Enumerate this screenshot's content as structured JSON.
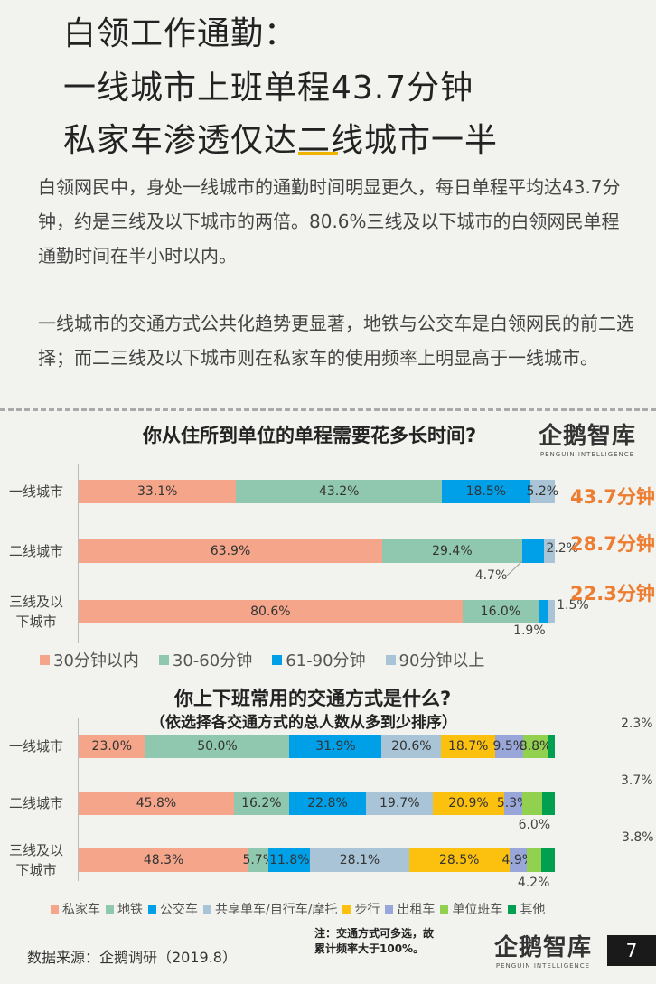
{
  "header": {
    "title_lines": [
      "白领工作通勤：",
      "一线城市上班单程43.7分钟",
      "私家车渗透仅达二线城市一半"
    ]
  },
  "body_text": {
    "para1": "白领网民中，身处一线城市的通勤时间明显更久，每日单程平均达43.7分钟，约是三线及以下城市的两倍。80.6%三线及以下城市的白领网民单程通勤时间在半小时以内。",
    "para2": "一线城市的交通方式公共化趋势更显著，地铁与公交车是白领网民的前二选择；而二三线及以下城市则在私家车的使用频率上明显高于一线城市。"
  },
  "logo": {
    "name": "企鹅智库",
    "sub": "PENGUIN INTELLIGENCE"
  },
  "chart_data": [
    {
      "type": "bar",
      "orientation": "horizontal",
      "stacked": true,
      "title": "你从住所到单位的单程需要花多长时间?",
      "categories": [
        "一线城市",
        "二线城市",
        "三线及以下城市"
      ],
      "category_labels": [
        [
          "一线城市"
        ],
        [
          "二线城市"
        ],
        [
          "三线及以",
          "下城市"
        ]
      ],
      "series": [
        {
          "name": "30分钟以内",
          "color": "#f4a58a",
          "values": [
            33.1,
            63.9,
            80.6
          ],
          "labels": [
            "33.1%",
            "63.9%",
            "80.6%"
          ]
        },
        {
          "name": "30-60分钟",
          "color": "#8fc8ae",
          "values": [
            43.2,
            29.4,
            16.0
          ],
          "labels": [
            "43.2%",
            "29.4%",
            "16.0%"
          ]
        },
        {
          "name": "61-90分钟",
          "color": "#00a0e9",
          "values": [
            18.5,
            4.7,
            1.9
          ],
          "labels": [
            "18.5%",
            "4.7%",
            "1.9%"
          ]
        },
        {
          "name": "90分钟以上",
          "color": "#a9c4d6",
          "values": [
            5.2,
            2.2,
            1.5
          ],
          "labels": [
            "5.2%",
            "2.2%",
            "1.5%"
          ]
        }
      ],
      "averages": [
        "43.7分钟",
        "28.7分钟",
        "22.3分钟"
      ],
      "legend": "bottom"
    },
    {
      "type": "bar",
      "orientation": "horizontal",
      "stacked": true,
      "title": "你上下班常用的交通方式是什么?",
      "subtitle": "（依选择各交通方式的总人数从多到少排序）",
      "categories": [
        "一线城市",
        "二线城市",
        "三线及以下城市"
      ],
      "category_labels": [
        [
          "一线城市"
        ],
        [
          "二线城市"
        ],
        [
          "三线及以",
          "下城市"
        ]
      ],
      "series": [
        {
          "name": "私家车",
          "color": "#f4a58a",
          "values": [
            23.0,
            45.8,
            48.3
          ],
          "labels": [
            "23.0%",
            "45.8%",
            "48.3%"
          ]
        },
        {
          "name": "地铁",
          "color": "#8fc8ae",
          "values": [
            50.0,
            16.2,
            5.7
          ],
          "labels": [
            "50.0%",
            "16.2%",
            "5.7%"
          ]
        },
        {
          "name": "公交车",
          "color": "#00a0e9",
          "values": [
            31.9,
            22.8,
            11.8
          ],
          "labels": [
            "31.9%",
            "22.8%",
            "11.8%"
          ]
        },
        {
          "name": "共享单车/自行车/摩托",
          "color": "#a9c4d6",
          "values": [
            20.6,
            19.7,
            28.1
          ],
          "labels": [
            "20.6%",
            "19.7%",
            "28.1%"
          ]
        },
        {
          "name": "步行",
          "color": "#fcc10f",
          "values": [
            18.7,
            20.9,
            28.5
          ],
          "labels": [
            "18.7%",
            "20.9%",
            "28.5%"
          ]
        },
        {
          "name": "出租车",
          "color": "#98a6d9",
          "values": [
            9.5,
            5.3,
            4.9
          ],
          "labels": [
            "9.5%",
            "5.3%",
            "4.9%"
          ]
        },
        {
          "name": "单位班车",
          "color": "#92d050",
          "values": [
            8.8,
            6.0,
            4.2
          ],
          "labels": [
            "8.8%",
            "6.0%",
            "4.2%"
          ]
        },
        {
          "name": "其他",
          "color": "#00a050",
          "values": [
            2.3,
            3.7,
            3.8
          ],
          "labels": [
            "2.3%",
            "3.7%",
            "3.8%"
          ]
        }
      ],
      "legend": "bottom"
    }
  ],
  "footer": {
    "source": "数据来源：企鹅调研（2019.8）",
    "note_lines": [
      "注：交通方式可多选，故",
      "累计频率大于100%。"
    ],
    "page_number": "7"
  }
}
